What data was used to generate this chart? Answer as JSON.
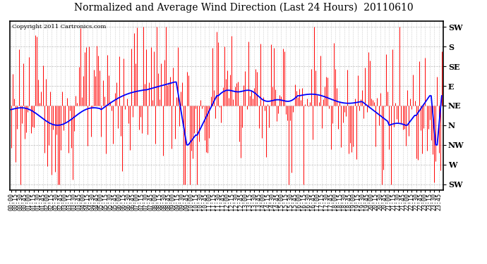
{
  "title": "Normalized and Average Wind Direction (Last 24 Hours)  20110610",
  "copyright_text": "Copyright 2011 Cartronics.com",
  "background_color": "#ffffff",
  "plot_bg_color": "#ffffff",
  "grid_color": "#aaaaaa",
  "bar_color": "#ff0000",
  "line_color": "#0000ff",
  "title_fontsize": 10,
  "copyright_fontsize": 6,
  "tick_fontsize": 6,
  "y_tick_vals": [
    0,
    1,
    2,
    3,
    4,
    5,
    6,
    7,
    8
  ],
  "y_tick_lbls": [
    "SW",
    "W",
    "NW",
    "N",
    "NE",
    "E",
    "SE",
    "S",
    "SW"
  ],
  "ylim": [
    -0.3,
    8.3
  ],
  "n_points": 288,
  "tick_step": 3,
  "baseline_y": 4.0
}
